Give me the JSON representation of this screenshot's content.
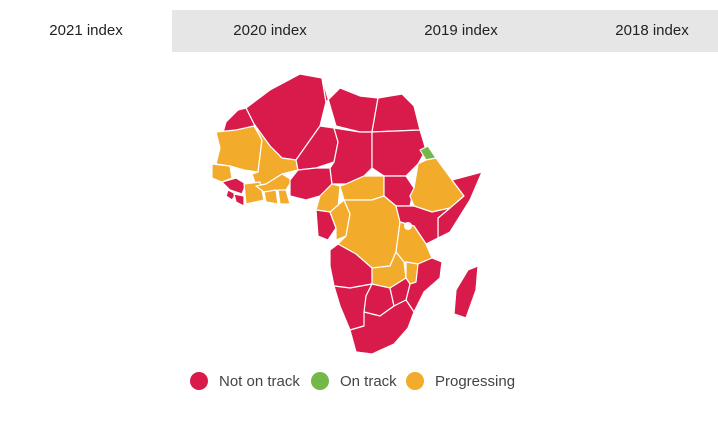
{
  "tabs": [
    {
      "label": "2021 index",
      "active": true
    },
    {
      "label": "2020 index",
      "active": false
    },
    {
      "label": "2019 index",
      "active": false
    },
    {
      "label": "2018 index",
      "active": false
    }
  ],
  "legend": [
    {
      "label": "Not on track",
      "color": "#d81b4a"
    },
    {
      "label": "On track",
      "color": "#74b84a"
    },
    {
      "label": "Progressing",
      "color": "#f2ab2a"
    }
  ],
  "map": {
    "region": "Africa",
    "status_colors": {
      "not_on_track": "#d81b4a",
      "on_track": "#74b84a",
      "progressing": "#f2ab2a"
    }
  }
}
